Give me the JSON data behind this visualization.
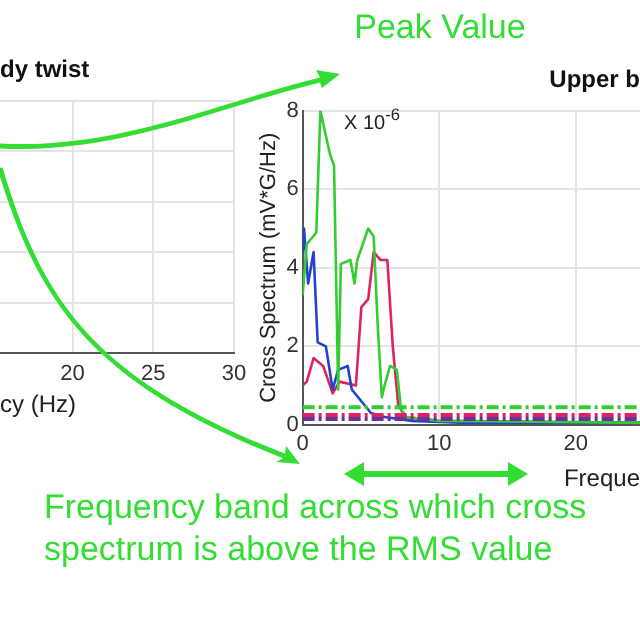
{
  "chart_data": [
    {
      "type": "other",
      "title": "dy twist",
      "xlabel": "cy (Hz)",
      "annotations": [
        "20",
        "25",
        "30"
      ]
    },
    {
      "type": "line",
      "title": "Upper b",
      "xlabel": "Freque",
      "ylabel": "Cross Spectrum (mV*G/Hz)",
      "xlim": [
        0,
        24.7
      ],
      "xticks": [
        0,
        10,
        20
      ],
      "ylim": [
        0,
        8
      ],
      "yticks": [
        0,
        2,
        4,
        6,
        8
      ],
      "grid": true,
      "series": [
        {
          "color": "#33cc33",
          "x": [
            0,
            0.3,
            1,
            1.3,
            2,
            2.3,
            2.6,
            2.8,
            3.5,
            3.8,
            4,
            4.8,
            5.2,
            5.5,
            5.8,
            6,
            6.4,
            6.9,
            7.2,
            7.6,
            10,
            24.7
          ],
          "values": [
            3.3,
            4.6,
            4.9,
            8,
            6.9,
            6.6,
            0.9,
            4.1,
            4.2,
            3.6,
            4.2,
            5,
            4.8,
            2.5,
            0.7,
            1,
            1.5,
            1.4,
            0.4,
            0.2,
            0.1,
            0.05
          ]
        },
        {
          "color": "#2244cc",
          "x": [
            0,
            0.1,
            0.4,
            0.8,
            1.1,
            1.7,
            2.2,
            2.6,
            3.3,
            3.6,
            4.3,
            5,
            6,
            8,
            12,
            24.7
          ],
          "values": [
            4.4,
            5,
            3.6,
            4.4,
            2.1,
            2,
            0.9,
            1.4,
            1.5,
            0.9,
            0.6,
            0.3,
            0.2,
            0.1,
            0.05,
            0.05
          ]
        },
        {
          "color": "#dd2266",
          "x": [
            0,
            0.3,
            0.8,
            1.5,
            2.2,
            2.7,
            3.9,
            4.3,
            4.8,
            5.2,
            5.7,
            6.2,
            6.6,
            7,
            7.5,
            10,
            24.7
          ],
          "values": [
            1,
            1.1,
            1.7,
            1.5,
            0.8,
            1.1,
            1,
            3,
            3.2,
            4.4,
            4.2,
            4.2,
            2,
            0.5,
            0.2,
            0.1,
            0.05
          ]
        }
      ],
      "ref_lines": [
        {
          "axis": "y",
          "value": 0.45,
          "color": "#33cc33",
          "line_style": "dashed"
        },
        {
          "axis": "y",
          "value": 0.25,
          "color": "#dd2266",
          "line_style": "dashed"
        },
        {
          "axis": "y",
          "value": 0.15,
          "color": "#663399",
          "line_style": "dashed"
        }
      ],
      "annotations": [
        "Peak Value",
        "X 10$^{-6}$",
        "Frequency band across which cross spectrum is above the RMS value"
      ]
    }
  ]
}
